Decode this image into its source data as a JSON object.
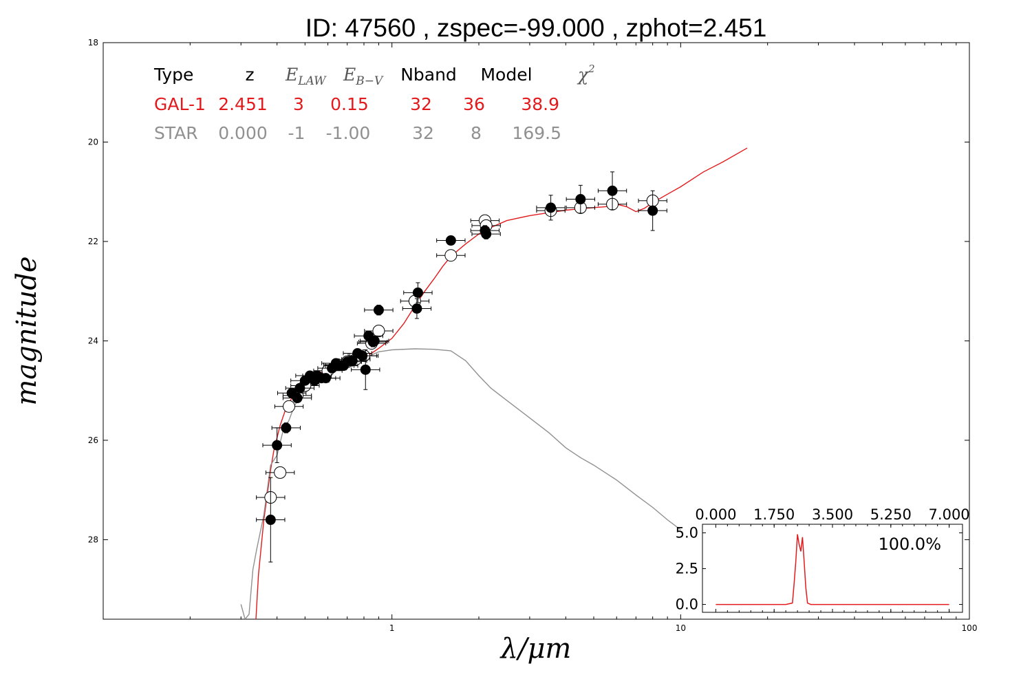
{
  "colors": {
    "galaxy": "#e31a1c",
    "star": "#909090",
    "filled_marker": "#000000",
    "open_marker": "#ffffff",
    "axes": "#000000"
  },
  "chart_data": {
    "type": "scatter",
    "title": "ID:  47560 , zspec=-99.000 , zphot=2.451",
    "xlabel": "λ/μm",
    "ylabel": "magnitude",
    "x_scale": "log",
    "xlim": [
      0.1,
      100
    ],
    "ylim": [
      29.6,
      18
    ],
    "y_inverted": true,
    "x_ticks": [
      1,
      10,
      100
    ],
    "x_tick_labels": [
      "1",
      "10",
      "100"
    ],
    "y_ticks": [
      18,
      20,
      22,
      24,
      26,
      28
    ],
    "y_tick_labels": [
      "18",
      "20",
      "22",
      "24",
      "26",
      "28"
    ],
    "legend_table": {
      "header": [
        "Type",
        "z",
        "E_LAW",
        "E_B−V",
        "Nband",
        "Model",
        "χ²"
      ],
      "header_plain": [
        "Type",
        "z",
        "",
        "",
        "Nband",
        "Model",
        ""
      ],
      "header_math": {
        "e_law": "E",
        "e_law_sub": "LAW",
        "ebv": "E",
        "ebv_sub": "B−V",
        "chi": "χ",
        "chi_sup": "2"
      },
      "rows": [
        {
          "type": "GAL-1",
          "z": "2.451",
          "e_law": "3",
          "ebv": "0.15",
          "nband": "32",
          "model": "36",
          "chi2": "38.9",
          "color": "#e31a1c"
        },
        {
          "type": "STAR",
          "z": "0.000",
          "e_law": "-1",
          "ebv": "-1.00",
          "nband": "32",
          "model": "8",
          "chi2": "169.5",
          "color": "#909090"
        }
      ]
    },
    "series": [
      {
        "name": "GAL-1",
        "kind": "line",
        "color": "#e31a1c",
        "x": [
          0.338,
          0.345,
          0.36,
          0.38,
          0.39,
          0.41,
          0.43,
          0.45,
          0.48,
          0.5,
          0.53,
          0.56,
          0.6,
          0.65,
          0.7,
          0.75,
          0.8,
          0.85,
          0.9,
          1.0,
          1.1,
          1.2,
          1.3,
          1.4,
          1.5,
          1.6,
          1.8,
          2.0,
          2.2,
          2.5,
          3.0,
          3.5,
          4.0,
          4.5,
          5.0,
          5.5,
          6.0,
          6.5,
          7.0,
          7.5,
          8.0,
          9.0,
          10.0,
          12.0,
          14.0,
          17.0
        ],
        "y": [
          29.6,
          28.7,
          27.6,
          26.6,
          26.2,
          25.7,
          25.35,
          25.15,
          24.95,
          24.85,
          24.72,
          24.65,
          24.58,
          24.5,
          24.45,
          24.4,
          24.33,
          24.25,
          24.15,
          23.95,
          23.65,
          23.3,
          23.0,
          22.75,
          22.5,
          22.3,
          22.05,
          21.85,
          21.72,
          21.58,
          21.48,
          21.42,
          21.37,
          21.34,
          21.32,
          21.3,
          21.25,
          21.3,
          21.4,
          21.33,
          21.22,
          21.05,
          20.9,
          20.6,
          20.4,
          20.12
        ]
      },
      {
        "name": "STAR",
        "kind": "line",
        "color": "#909090",
        "x": [
          0.3,
          0.31,
          0.32,
          0.33,
          0.34,
          0.36,
          0.38,
          0.4,
          0.42,
          0.44,
          0.46,
          0.5,
          0.55,
          0.6,
          0.7,
          0.8,
          0.9,
          1.0,
          1.2,
          1.4,
          1.6,
          1.8,
          2.0,
          2.2,
          2.5,
          3.0,
          3.5,
          4.0,
          4.5,
          5.0,
          6.0,
          7.0,
          8.0,
          9.0,
          10.0
        ],
        "y": [
          29.3,
          29.6,
          29.5,
          28.6,
          28.2,
          27.5,
          26.5,
          26.3,
          25.8,
          25.6,
          25.3,
          25.0,
          24.8,
          24.6,
          24.5,
          24.35,
          24.22,
          24.18,
          24.16,
          24.17,
          24.2,
          24.4,
          24.7,
          24.95,
          25.2,
          25.55,
          25.85,
          26.15,
          26.35,
          26.5,
          26.8,
          27.1,
          27.35,
          27.6,
          27.8
        ]
      },
      {
        "name": "observed",
        "kind": "filled_points",
        "x": [
          0.38,
          0.4,
          0.43,
          0.45,
          0.47,
          0.48,
          0.5,
          0.52,
          0.54,
          0.55,
          0.57,
          0.59,
          0.62,
          0.64,
          0.66,
          0.68,
          0.7,
          0.73,
          0.76,
          0.79,
          0.81,
          0.83,
          0.86,
          0.87,
          0.9,
          1.22,
          1.23,
          1.6,
          2.1,
          2.12,
          3.55,
          4.5,
          5.8,
          8.0
        ],
        "y": [
          27.6,
          26.1,
          25.75,
          25.05,
          25.15,
          24.95,
          24.8,
          24.7,
          24.8,
          24.7,
          24.75,
          24.75,
          24.55,
          24.45,
          24.5,
          24.5,
          24.42,
          24.4,
          24.25,
          24.3,
          24.58,
          23.9,
          24.02,
          24.0,
          23.38,
          23.35,
          23.03,
          21.98,
          21.78,
          21.85,
          21.32,
          21.15,
          20.98,
          21.38
        ],
        "yerr": [
          0.85,
          0.35,
          0.1,
          0.08,
          0.08,
          0.08,
          0.06,
          0.06,
          0.06,
          0.06,
          0.06,
          0.06,
          0.06,
          0.06,
          0.06,
          0.06,
          0.06,
          0.06,
          0.06,
          0.06,
          0.4,
          0.1,
          0.1,
          0.1,
          0.1,
          0.2,
          0.2,
          0.08,
          0.1,
          0.1,
          0.25,
          0.28,
          0.38,
          0.4
        ]
      },
      {
        "name": "model",
        "kind": "open_points",
        "x": [
          0.38,
          0.41,
          0.44,
          0.47,
          0.5,
          0.55,
          0.6,
          0.65,
          0.7,
          0.75,
          0.8,
          0.85,
          0.9,
          1.2,
          1.6,
          2.1,
          2.12,
          3.55,
          4.5,
          5.8,
          8.0
        ],
        "y": [
          27.15,
          26.65,
          25.32,
          25.1,
          24.9,
          24.72,
          24.6,
          24.48,
          24.42,
          24.37,
          24.3,
          24.05,
          23.8,
          23.2,
          22.28,
          21.58,
          21.68,
          21.38,
          21.32,
          21.25,
          21.18
        ]
      }
    ],
    "inset": {
      "type": "line",
      "x_ticks": [
        0,
        1.75,
        3.5,
        5.25,
        7
      ],
      "x_tick_labels": [
        "0.000",
        "1.750",
        "3.500",
        "5.250",
        "7.000"
      ],
      "y_ticks": [
        0,
        2.5,
        5
      ],
      "y_tick_labels": [
        "0.0",
        "2.5",
        "5.0"
      ],
      "xlim": [
        -0.4,
        7.4
      ],
      "ylim": [
        -0.55,
        5.6
      ],
      "annotation": "100.0%",
      "x": [
        0.0,
        1.8,
        2.1,
        2.3,
        2.35,
        2.4,
        2.45,
        2.5,
        2.55,
        2.6,
        2.65,
        2.7,
        2.75,
        2.85,
        3.0,
        5.0,
        7.0
      ],
      "y": [
        0.0,
        0.0,
        0.0,
        0.1,
        1.5,
        3.0,
        4.9,
        4.2,
        3.7,
        4.7,
        3.0,
        1.2,
        0.1,
        0.0,
        0.0,
        0.0,
        0.0
      ]
    }
  }
}
